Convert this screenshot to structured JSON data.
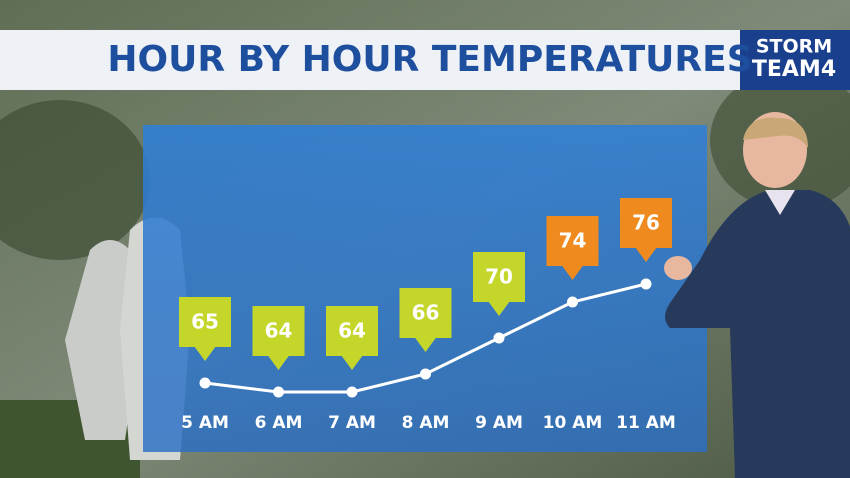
{
  "chart_data": {
    "type": "line",
    "title": "HOUR BY HOUR TEMPERATURES",
    "logo": [
      "STORM",
      "TEAM4"
    ],
    "categories": [
      "5 AM",
      "6 AM",
      "7 AM",
      "8 AM",
      "9 AM",
      "10 AM",
      "11 AM"
    ],
    "values": [
      65,
      64,
      64,
      66,
      70,
      74,
      76
    ],
    "color": "#ffffff",
    "label_colors": [
      "#c5d62b",
      "#c5d62b",
      "#c5d62b",
      "#c5d62b",
      "#c5d62b",
      "#ef8a1f",
      "#ef8a1f"
    ]
  }
}
